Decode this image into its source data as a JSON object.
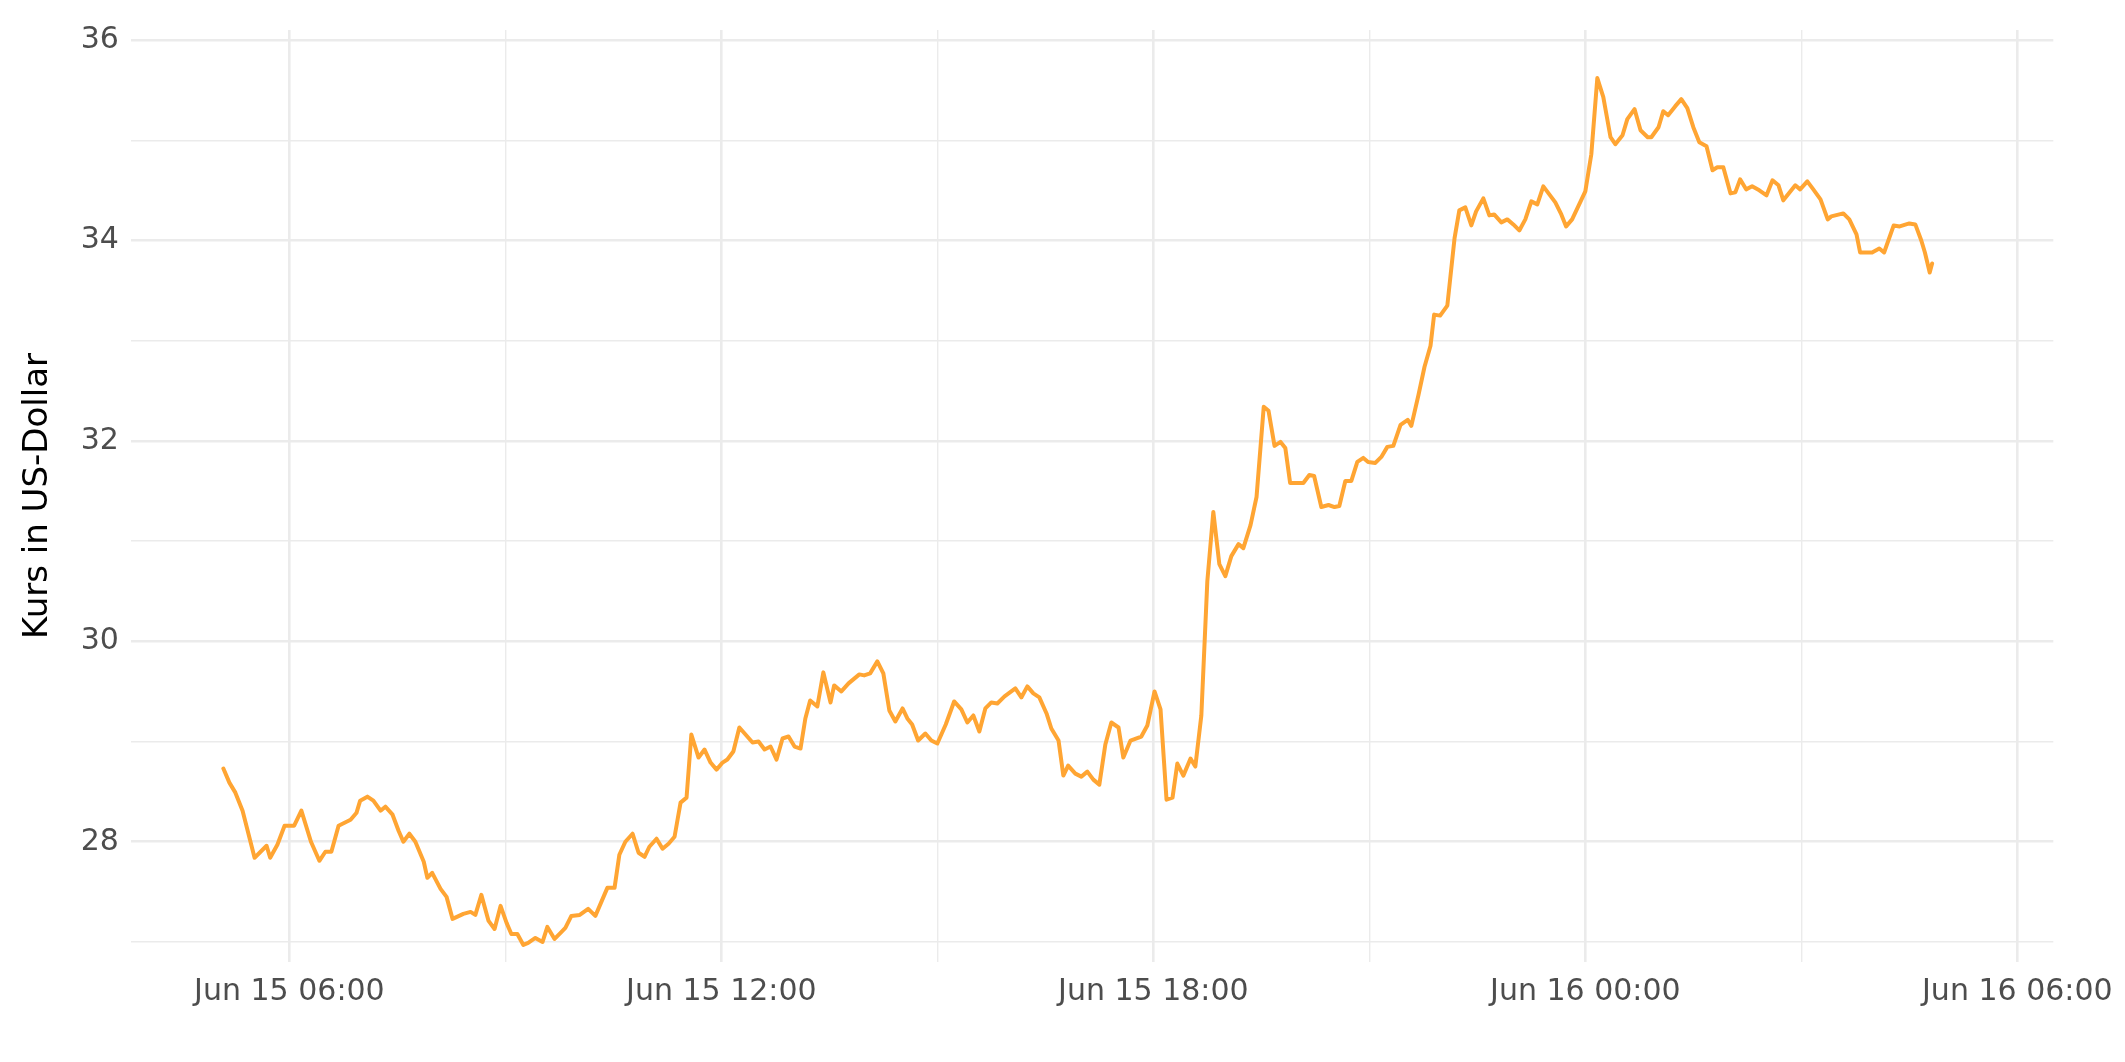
{
  "chart_data": {
    "type": "line",
    "ylabel": "Kurs in US-Dollar",
    "color": "#ffa533",
    "grid": true,
    "xlim": [
      "--06-15T03:48",
      "--06-16T06:30"
    ],
    "ylim": [
      26.8,
      36.1
    ],
    "xticks": [
      {
        "value": "--06-15T06:00",
        "label": "Jun 15 06:00"
      },
      {
        "value": "--06-15T09:00",
        "label": null
      },
      {
        "value": "--06-15T12:00",
        "label": "Jun 15 12:00"
      },
      {
        "value": "--06-15T15:00",
        "label": null
      },
      {
        "value": "--06-15T18:00",
        "label": "Jun 15 18:00"
      },
      {
        "value": "--06-15T21:00",
        "label": null
      },
      {
        "value": "--06-16T00:00",
        "label": "Jun 16 00:00"
      },
      {
        "value": "--06-16T03:00",
        "label": null
      },
      {
        "value": "--06-16T06:00",
        "label": "Jun 16 06:00"
      }
    ],
    "yticks": [
      {
        "value": 27,
        "label": null
      },
      28,
      {
        "value": 29,
        "label": null
      },
      30,
      {
        "value": 31,
        "label": null
      },
      32,
      {
        "value": 33,
        "label": null
      },
      34,
      {
        "value": 35,
        "label": null
      },
      36
    ],
    "x": [
      "--06-15T05:05",
      "--06-15T05:10",
      "--06-15T05:15",
      "--06-15T05:21",
      "--06-15T05:31",
      "--06-15T05:41",
      "--06-15T05:44",
      "--06-15T05:50",
      "--06-15T05:56",
      "--06-15T06:04",
      "--06-15T06:10",
      "--06-15T06:18",
      "--06-15T06:25",
      "--06-15T06:30",
      "--06-15T06:35",
      "--06-15T06:41",
      "--06-15T06:51",
      "--06-15T06:56",
      "--06-15T06:59",
      "--06-15T07:05",
      "--06-15T07:10",
      "--06-15T07:16",
      "--06-15T07:20",
      "--06-15T07:26",
      "--06-15T07:31",
      "--06-15T07:35",
      "--06-15T07:40",
      "--06-15T07:45",
      "--06-15T07:52",
      "--06-15T07:55",
      "--06-15T07:59",
      "--06-15T08:06",
      "--06-15T08:11",
      "--06-15T08:16",
      "--06-15T08:25",
      "--06-15T08:31",
      "--06-15T08:35",
      "--06-15T08:40",
      "--06-15T08:46",
      "--06-15T08:51",
      "--06-15T08:56",
      "--06-15T09:01",
      "--06-15T09:05",
      "--06-15T09:10",
      "--06-15T09:15",
      "--06-15T09:19",
      "--06-15T09:25",
      "--06-15T09:31",
      "--06-15T09:35",
      "--06-15T09:41",
      "--06-15T09:46",
      "--06-15T09:50",
      "--06-15T09:55",
      "--06-15T10:02",
      "--06-15T10:09",
      "--06-15T10:15",
      "--06-15T10:25",
      "--06-15T10:31",
      "--06-15T10:35",
      "--06-15T10:40",
      "--06-15T10:46",
      "--06-15T10:51",
      "--06-15T10:56",
      "--06-15T11:00",
      "--06-15T11:06",
      "--06-15T11:11",
      "--06-15T11:16",
      "--06-15T11:21",
      "--06-15T11:26",
      "--06-15T11:31",
      "--06-15T11:35",
      "--06-15T11:41",
      "--06-15T11:46",
      "--06-15T11:51",
      "--06-15T11:56",
      "--06-15T12:01",
      "--06-15T12:05",
      "--06-15T12:10",
      "--06-15T12:15",
      "--06-15T12:26",
      "--06-15T12:31",
      "--06-15T12:36",
      "--06-15T12:41",
      "--06-15T12:46",
      "--06-15T12:51",
      "--06-15T12:56",
      "--06-15T13:01",
      "--06-15T13:06",
      "--06-15T13:10",
      "--06-15T13:14",
      "--06-15T13:20",
      "--06-15T13:25",
      "--06-15T13:31",
      "--06-15T13:34",
      "--06-15T13:40",
      "--06-15T13:46",
      "--06-15T13:55",
      "--06-15T13:59",
      "--06-15T14:04",
      "--06-15T14:10",
      "--06-15T14:15",
      "--06-15T14:20",
      "--06-15T14:25",
      "--06-15T14:31",
      "--06-15T14:35",
      "--06-15T14:39",
      "--06-15T14:44",
      "--06-15T14:50",
      "--06-15T14:55",
      "--06-15T15:00",
      "--06-15T15:07",
      "--06-15T15:14",
      "--06-15T15:20",
      "--06-15T15:25",
      "--06-15T15:30",
      "--06-15T15:35",
      "--06-15T15:40",
      "--06-15T15:45",
      "--06-15T15:50",
      "--06-15T15:56",
      "--06-15T16:05",
      "--06-15T16:10",
      "--06-15T16:15",
      "--06-15T16:20",
      "--06-15T16:25",
      "--06-15T16:31",
      "--06-15T16:35",
      "--06-15T16:41",
      "--06-15T16:45",
      "--06-15T16:49",
      "--06-15T16:55",
      "--06-15T17:00",
      "--06-15T17:05",
      "--06-15T17:10",
      "--06-15T17:15",
      "--06-15T17:20",
      "--06-15T17:25",
      "--06-15T17:31",
      "--06-15T17:35",
      "--06-15T17:41",
      "--06-15T17:50",
      "--06-15T17:55",
      "--06-15T18:01",
      "--06-15T18:06",
      "--06-15T18:11",
      "--06-15T18:16",
      "--06-15T18:20",
      "--06-15T18:25",
      "--06-15T18:31",
      "--06-15T18:35",
      "--06-15T18:40",
      "--06-15T18:45",
      "--06-15T18:50",
      "--06-15T18:55",
      "--06-15T19:00",
      "--06-15T19:05",
      "--06-15T19:11",
      "--06-15T19:15",
      "--06-15T19:21",
      "--06-15T19:26",
      "--06-15T19:32",
      "--06-15T19:36",
      "--06-15T19:41",
      "--06-15T19:46",
      "--06-15T19:50",
      "--06-15T19:54",
      "--06-15T20:05",
      "--06-15T20:10",
      "--06-15T20:14",
      "--06-15T20:20",
      "--06-15T20:26",
      "--06-15T20:31",
      "--06-15T20:35",
      "--06-15T20:40",
      "--06-15T20:45",
      "--06-15T20:50",
      "--06-15T20:55",
      "--06-15T20:59",
      "--06-15T21:05",
      "--06-15T21:10",
      "--06-15T21:15",
      "--06-15T21:20",
      "--06-15T21:26",
      "--06-15T21:32",
      "--06-15T21:35",
      "--06-15T21:41",
      "--06-15T21:46",
      "--06-15T21:51",
      "--06-15T21:54",
      "--06-15T21:59",
      "--06-15T22:05",
      "--06-15T22:11",
      "--06-15T22:15",
      "--06-15T22:20",
      "--06-15T22:25",
      "--06-15T22:29",
      "--06-15T22:35",
      "--06-15T22:40",
      "--06-15T22:44",
      "--06-15T22:50",
      "--06-15T22:55",
      "--06-15T23:00",
      "--06-15T23:05",
      "--06-15T23:10",
      "--06-15T23:15",
      "--06-15T23:20",
      "--06-15T23:25",
      "--06-15T23:35",
      "--06-15T23:40",
      "--06-15T23:44",
      "--06-15T23:49",
      "--06-16T00:00",
      "--06-16T00:05",
      "--06-16T00:10",
      "--06-16T00:15",
      "--06-16T00:21",
      "--06-16T00:25",
      "--06-16T00:31",
      "--06-16T00:35",
      "--06-16T00:41",
      "--06-16T00:46",
      "--06-16T00:52",
      "--06-16T00:55",
      "--06-16T01:01",
      "--06-16T01:05",
      "--06-16T01:09",
      "--06-16T01:15",
      "--06-16T01:20",
      "--06-16T01:25",
      "--06-16T01:30",
      "--06-16T01:35",
      "--06-16T01:41",
      "--06-16T01:46",
      "--06-16T01:50",
      "--06-16T01:55",
      "--06-16T02:01",
      "--06-16T02:05",
      "--06-16T02:09",
      "--06-16T02:14",
      "--06-16T02:19",
      "--06-16T02:25",
      "--06-16T02:31",
      "--06-16T02:36",
      "--06-16T02:41",
      "--06-16T02:45",
      "--06-16T02:55",
      "--06-16T02:59",
      "--06-16T03:05",
      "--06-16T03:10",
      "--06-16T03:16",
      "--06-16T03:22",
      "--06-16T03:25",
      "--06-16T03:35",
      "--06-16T03:40",
      "--06-16T03:46",
      "--06-16T03:49",
      "--06-16T03:59",
      "--06-16T04:05",
      "--06-16T04:09",
      "--06-16T04:17",
      "--06-16T04:22",
      "--06-16T04:30",
      "--06-16T04:35",
      "--06-16T04:40",
      "--06-16T04:43",
      "--06-16T04:47",
      "--06-16T04:49"
    ],
    "values": [
      28.73,
      28.59,
      28.49,
      28.31,
      27.84,
      27.96,
      27.84,
      27.97,
      28.16,
      28.16,
      28.31,
      28.0,
      27.81,
      27.9,
      27.9,
      28.16,
      28.22,
      28.29,
      28.41,
      28.45,
      28.41,
      28.31,
      28.35,
      28.27,
      28.11,
      28.0,
      28.08,
      28.0,
      27.8,
      27.64,
      27.69,
      27.53,
      27.45,
      27.23,
      27.28,
      27.3,
      27.27,
      27.47,
      27.21,
      27.13,
      27.36,
      27.19,
      27.08,
      27.08,
      26.97,
      26.99,
      27.04,
      27.0,
      27.15,
      27.03,
      27.09,
      27.14,
      27.26,
      27.27,
      27.33,
      27.26,
      27.54,
      27.54,
      27.87,
      28.0,
      28.08,
      27.89,
      27.85,
      27.95,
      28.03,
      27.93,
      27.98,
      28.05,
      28.39,
      28.44,
      29.07,
      28.84,
      28.92,
      28.79,
      28.72,
      28.79,
      28.82,
      28.9,
      29.14,
      28.99,
      29.0,
      28.92,
      28.95,
      28.82,
      29.03,
      29.05,
      28.95,
      28.93,
      29.23,
      29.41,
      29.35,
      29.69,
      29.39,
      29.56,
      29.5,
      29.58,
      29.67,
      29.66,
      29.68,
      29.8,
      29.68,
      29.31,
      29.2,
      29.33,
      29.23,
      29.17,
      29.01,
      29.08,
      29.01,
      28.98,
      29.17,
      29.4,
      29.32,
      29.19,
      29.26,
      29.1,
      29.33,
      29.39,
      29.38,
      29.45,
      29.53,
      29.44,
      29.55,
      29.48,
      29.44,
      29.28,
      29.13,
      29.01,
      28.66,
      28.76,
      28.68,
      28.65,
      28.7,
      28.62,
      28.57,
      28.97,
      29.19,
      29.14,
      28.84,
      29.01,
      29.05,
      29.16,
      29.5,
      29.32,
      28.42,
      28.44,
      28.78,
      28.66,
      28.83,
      28.75,
      29.26,
      30.6,
      31.29,
      30.77,
      30.65,
      30.85,
      30.97,
      30.93,
      31.16,
      31.44,
      32.34,
      32.3,
      31.95,
      31.99,
      31.93,
      31.58,
      31.58,
      31.66,
      31.65,
      31.34,
      31.36,
      31.34,
      31.35,
      31.6,
      31.6,
      31.79,
      31.83,
      31.79,
      31.78,
      31.84,
      31.94,
      31.95,
      32.16,
      32.21,
      32.15,
      32.46,
      32.74,
      32.95,
      33.26,
      33.25,
      33.35,
      34.02,
      34.3,
      34.33,
      34.15,
      34.29,
      34.42,
      34.25,
      34.26,
      34.18,
      34.21,
      34.16,
      34.1,
      34.21,
      34.39,
      34.36,
      34.54,
      34.38,
      34.26,
      34.14,
      34.21,
      34.49,
      34.86,
      35.62,
      35.43,
      35.03,
      34.96,
      35.05,
      35.21,
      35.31,
      35.1,
      35.03,
      35.03,
      35.13,
      35.29,
      35.25,
      35.34,
      35.41,
      35.32,
      35.13,
      34.98,
      34.94,
      34.7,
      34.73,
      34.73,
      34.47,
      34.48,
      34.61,
      34.51,
      34.54,
      34.5,
      34.45,
      34.6,
      34.55,
      34.4,
      34.55,
      34.51,
      34.59,
      34.51,
      34.41,
      34.21,
      34.24,
      34.27,
      34.21,
      34.06,
      33.88,
      33.88,
      33.92,
      33.88,
      34.15,
      34.14,
      34.17,
      34.16,
      34.0,
      33.88,
      33.68,
      33.77
    ]
  }
}
